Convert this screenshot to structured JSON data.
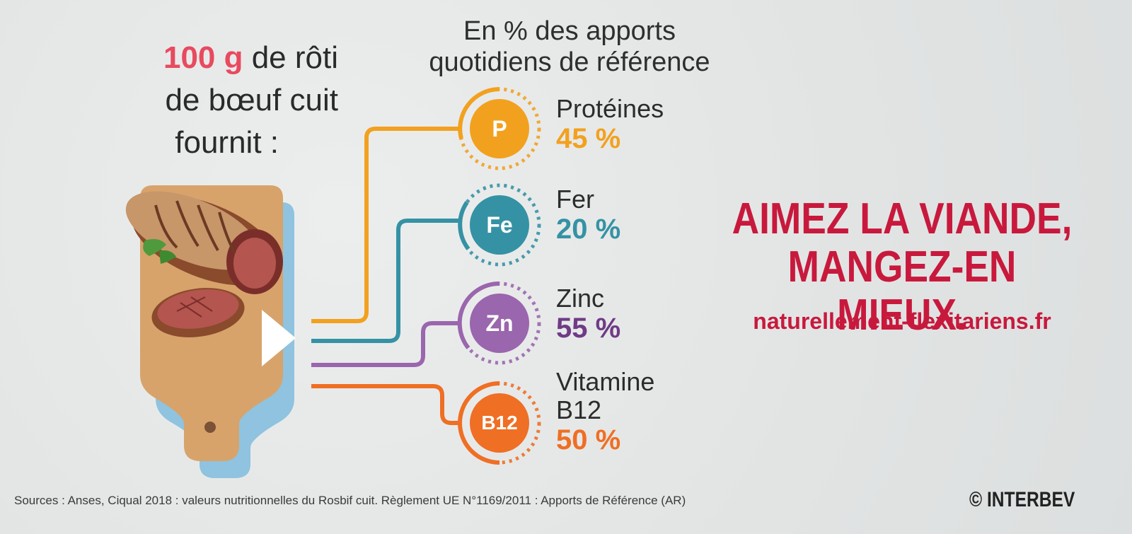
{
  "headline": {
    "highlight": "100 g",
    "rest_line1": " de rôti",
    "line2": "de bœuf cuit",
    "line3": "fournit :"
  },
  "subtitle": {
    "line1": "En % des apports",
    "line2": "quotidiens de référence"
  },
  "nutrients": [
    {
      "symbol": "P",
      "name_line1": "Protéines",
      "name_line2": "",
      "value": "45 %",
      "color": "#f2a11f"
    },
    {
      "symbol": "Fe",
      "name_line1": "Fer",
      "name_line2": "",
      "value": "20 %",
      "color": "#3592a4"
    },
    {
      "symbol": "Zn",
      "name_line1": "Zinc",
      "name_line2": "",
      "value": "55 %",
      "color": "#9a66ad"
    },
    {
      "symbol": "B12",
      "name_line1": "Vitamine",
      "name_line2": "B12",
      "value": "50 %",
      "color": "#ef6f24"
    }
  ],
  "value_colors": {
    "P": "#f2a11f",
    "Fe": "#3592a4",
    "Zn": "#6f3b86",
    "B12": "#ef6f24"
  },
  "slogan": {
    "line1": "AIMEZ LA VIANDE,",
    "line2": "MANGEZ-EN MIEUX."
  },
  "website": "naturellement-flexitariens.fr",
  "sources": "Sources : Anses, Ciqual 2018 : valeurs nutritionnelles du Rosbif cuit. Règlement UE N°1169/2011 : Apports de Référence (AR)",
  "copyright": "© INTERBEV",
  "brand_color": "#c8193d"
}
